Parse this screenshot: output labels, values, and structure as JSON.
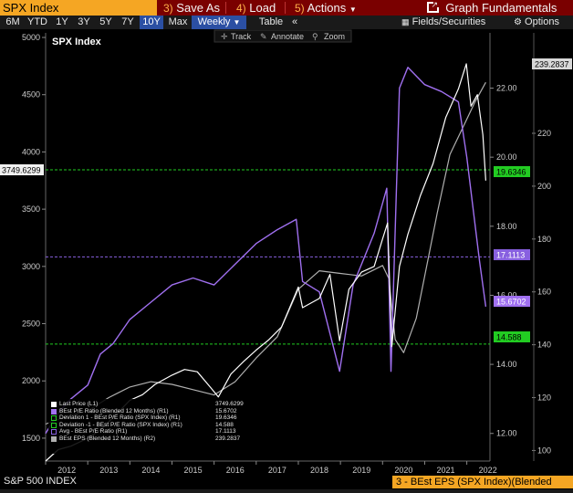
{
  "toolbar": {
    "title": "SPX Index",
    "save_num": "3)",
    "save_label": "Save As",
    "load_num": "4)",
    "load_label": "Load",
    "actions_num": "5)",
    "actions_label": "Actions",
    "graph_label": "Graph Fundamentals"
  },
  "range_bar": {
    "ranges": [
      "6M",
      "YTD",
      "1Y",
      "3Y",
      "5Y",
      "7Y",
      "10Y",
      "Max"
    ],
    "selected": "10Y",
    "frequency": "Weekly",
    "table_label": "Table",
    "collapse_label": "«",
    "fields_label": "Fields/Securities",
    "options_label": "Options"
  },
  "chart_tools": {
    "track": "Track",
    "annotate": "Annotate",
    "zoom": "Zoom"
  },
  "chart_data": {
    "type": "line",
    "title": "SPX Index",
    "x_ticks": [
      "2012",
      "2013",
      "2014",
      "2015",
      "2016",
      "2017",
      "2018",
      "2019",
      "2020",
      "2021",
      "2022"
    ],
    "x_range": [
      2012.0,
      2022.55
    ],
    "y_left": {
      "ticks": [
        "1500",
        "2000",
        "2500",
        "3000",
        "3500",
        "4000",
        "4500",
        "5000"
      ],
      "range": [
        1300,
        5040
      ]
    },
    "y_right_1": {
      "ticks": [
        "12.00",
        "14.00",
        "16.00",
        "18.00",
        "20.00",
        "22.00"
      ],
      "range": [
        11.2,
        23.6
      ]
    },
    "y_right_2": {
      "ticks": [
        "100",
        "120",
        "140",
        "160",
        "180",
        "200",
        "220"
      ],
      "range": [
        96,
        258
      ]
    },
    "highlight_labels": {
      "last_price": "3749.6299",
      "dev_plus": "19.6346",
      "avg": "17.1113",
      "pe": "15.6702",
      "dev_minus": "14.588",
      "eps": "239.2837"
    },
    "series": [
      {
        "name": "Last Price (L1)",
        "color": "#ffffff",
        "axis": "left",
        "x": [
          2012.0,
          2012.3,
          2012.6,
          2013.0,
          2013.3,
          2013.6,
          2014.0,
          2014.3,
          2014.6,
          2015.0,
          2015.3,
          2015.6,
          2015.9,
          2016.1,
          2016.4,
          2016.7,
          2017.0,
          2017.3,
          2017.6,
          2018.0,
          2018.1,
          2018.5,
          2018.75,
          2018.98,
          2019.2,
          2019.5,
          2019.8,
          2020.0,
          2020.12,
          2020.22,
          2020.4,
          2020.6,
          2020.9,
          2021.2,
          2021.5,
          2021.8,
          2021.99,
          2022.1,
          2022.25,
          2022.38,
          2022.45
        ],
        "values": [
          1300,
          1400,
          1430,
          1500,
          1570,
          1680,
          1830,
          1880,
          1970,
          2050,
          2100,
          2080,
          1950,
          1860,
          2060,
          2170,
          2270,
          2360,
          2470,
          2820,
          2640,
          2720,
          2930,
          2350,
          2800,
          2950,
          3000,
          3240,
          3380,
          2300,
          3000,
          3280,
          3620,
          3900,
          4300,
          4550,
          4770,
          4400,
          4500,
          4150,
          3750
        ]
      },
      {
        "name": "BEst P/E Ratio (Blended 12 Months) (R1)",
        "color": "#a070f0",
        "axis": "right1",
        "x": [
          2012.0,
          2012.3,
          2012.6,
          2013.0,
          2013.3,
          2013.6,
          2014.0,
          2014.5,
          2015.0,
          2015.5,
          2016.0,
          2016.5,
          2017.0,
          2017.5,
          2017.95,
          2018.1,
          2018.5,
          2018.98,
          2019.3,
          2019.8,
          2020.1,
          2020.2,
          2020.4,
          2020.6,
          2021.0,
          2021.4,
          2021.8,
          2022.0,
          2022.3,
          2022.45
        ],
        "values": [
          12.0,
          12.6,
          13.0,
          13.4,
          14.3,
          14.6,
          15.3,
          15.8,
          16.3,
          16.5,
          16.3,
          16.9,
          17.5,
          17.9,
          18.2,
          16.4,
          16.1,
          13.8,
          16.3,
          17.8,
          19.1,
          13.8,
          22.0,
          22.6,
          22.1,
          21.9,
          21.6,
          20.0,
          17.0,
          15.67
        ]
      },
      {
        "name": "BEst EPS (Blended 12 Months) (R2)",
        "color": "#b0b0b0",
        "axis": "right2",
        "x": [
          2012.0,
          2012.5,
          2013.0,
          2013.5,
          2014.0,
          2014.5,
          2015.0,
          2015.5,
          2016.0,
          2016.5,
          2017.0,
          2017.5,
          2018.0,
          2018.5,
          2019.0,
          2019.5,
          2020.0,
          2020.15,
          2020.3,
          2020.5,
          2020.8,
          2021.0,
          2021.3,
          2021.6,
          2021.9,
          2022.2,
          2022.45
        ],
        "values": [
          110,
          113,
          115,
          120,
          124,
          126,
          125,
          123,
          121,
          126,
          135,
          143,
          161,
          168,
          167,
          166,
          170,
          165,
          142,
          137,
          150,
          166,
          190,
          212,
          222,
          232,
          239.28
        ]
      }
    ],
    "reference_lines": [
      {
        "name": "Deviation 1 - BEst P/E Ratio (SPX Index) (R1)",
        "value": 19.6346,
        "color": "#22cc22"
      },
      {
        "name": "Avg - BEst P/E Ratio (R1)",
        "value": 17.1113,
        "color": "#8860e0"
      },
      {
        "name": "Deviation -1 - BEst P/E Ratio (SPX Index) (R1)",
        "value": 14.588,
        "color": "#22cc22"
      }
    ]
  },
  "legend": {
    "items": [
      {
        "label": "Last Price (L1)",
        "value": "3749.6299",
        "color": "#ffffff"
      },
      {
        "label": "BEst P/E Ratio (Blended 12 Months) (R1)",
        "value": "15.6702",
        "color": "#a070f0"
      },
      {
        "label": "Deviation 1 - BEst P/E Ratio (SPX Index) (R1)",
        "value": "19.6346",
        "color": "#22cc22"
      },
      {
        "label": "Deviation -1 - BEst P/E Ratio (SPX Index) (R1)",
        "value": "14.588",
        "color": "#22cc22"
      },
      {
        "label": "Avg - BEst P/E Ratio (R1)",
        "value": "17.1113",
        "color": "#8860e0"
      },
      {
        "label": "BEst EPS (Blended 12 Months) (R2)",
        "value": "239.2837",
        "color": "#b0b0b0"
      }
    ]
  },
  "footer": {
    "security": "S&P 500 INDEX",
    "badge": "3 - BEst EPS (SPX Index)(Blended"
  }
}
